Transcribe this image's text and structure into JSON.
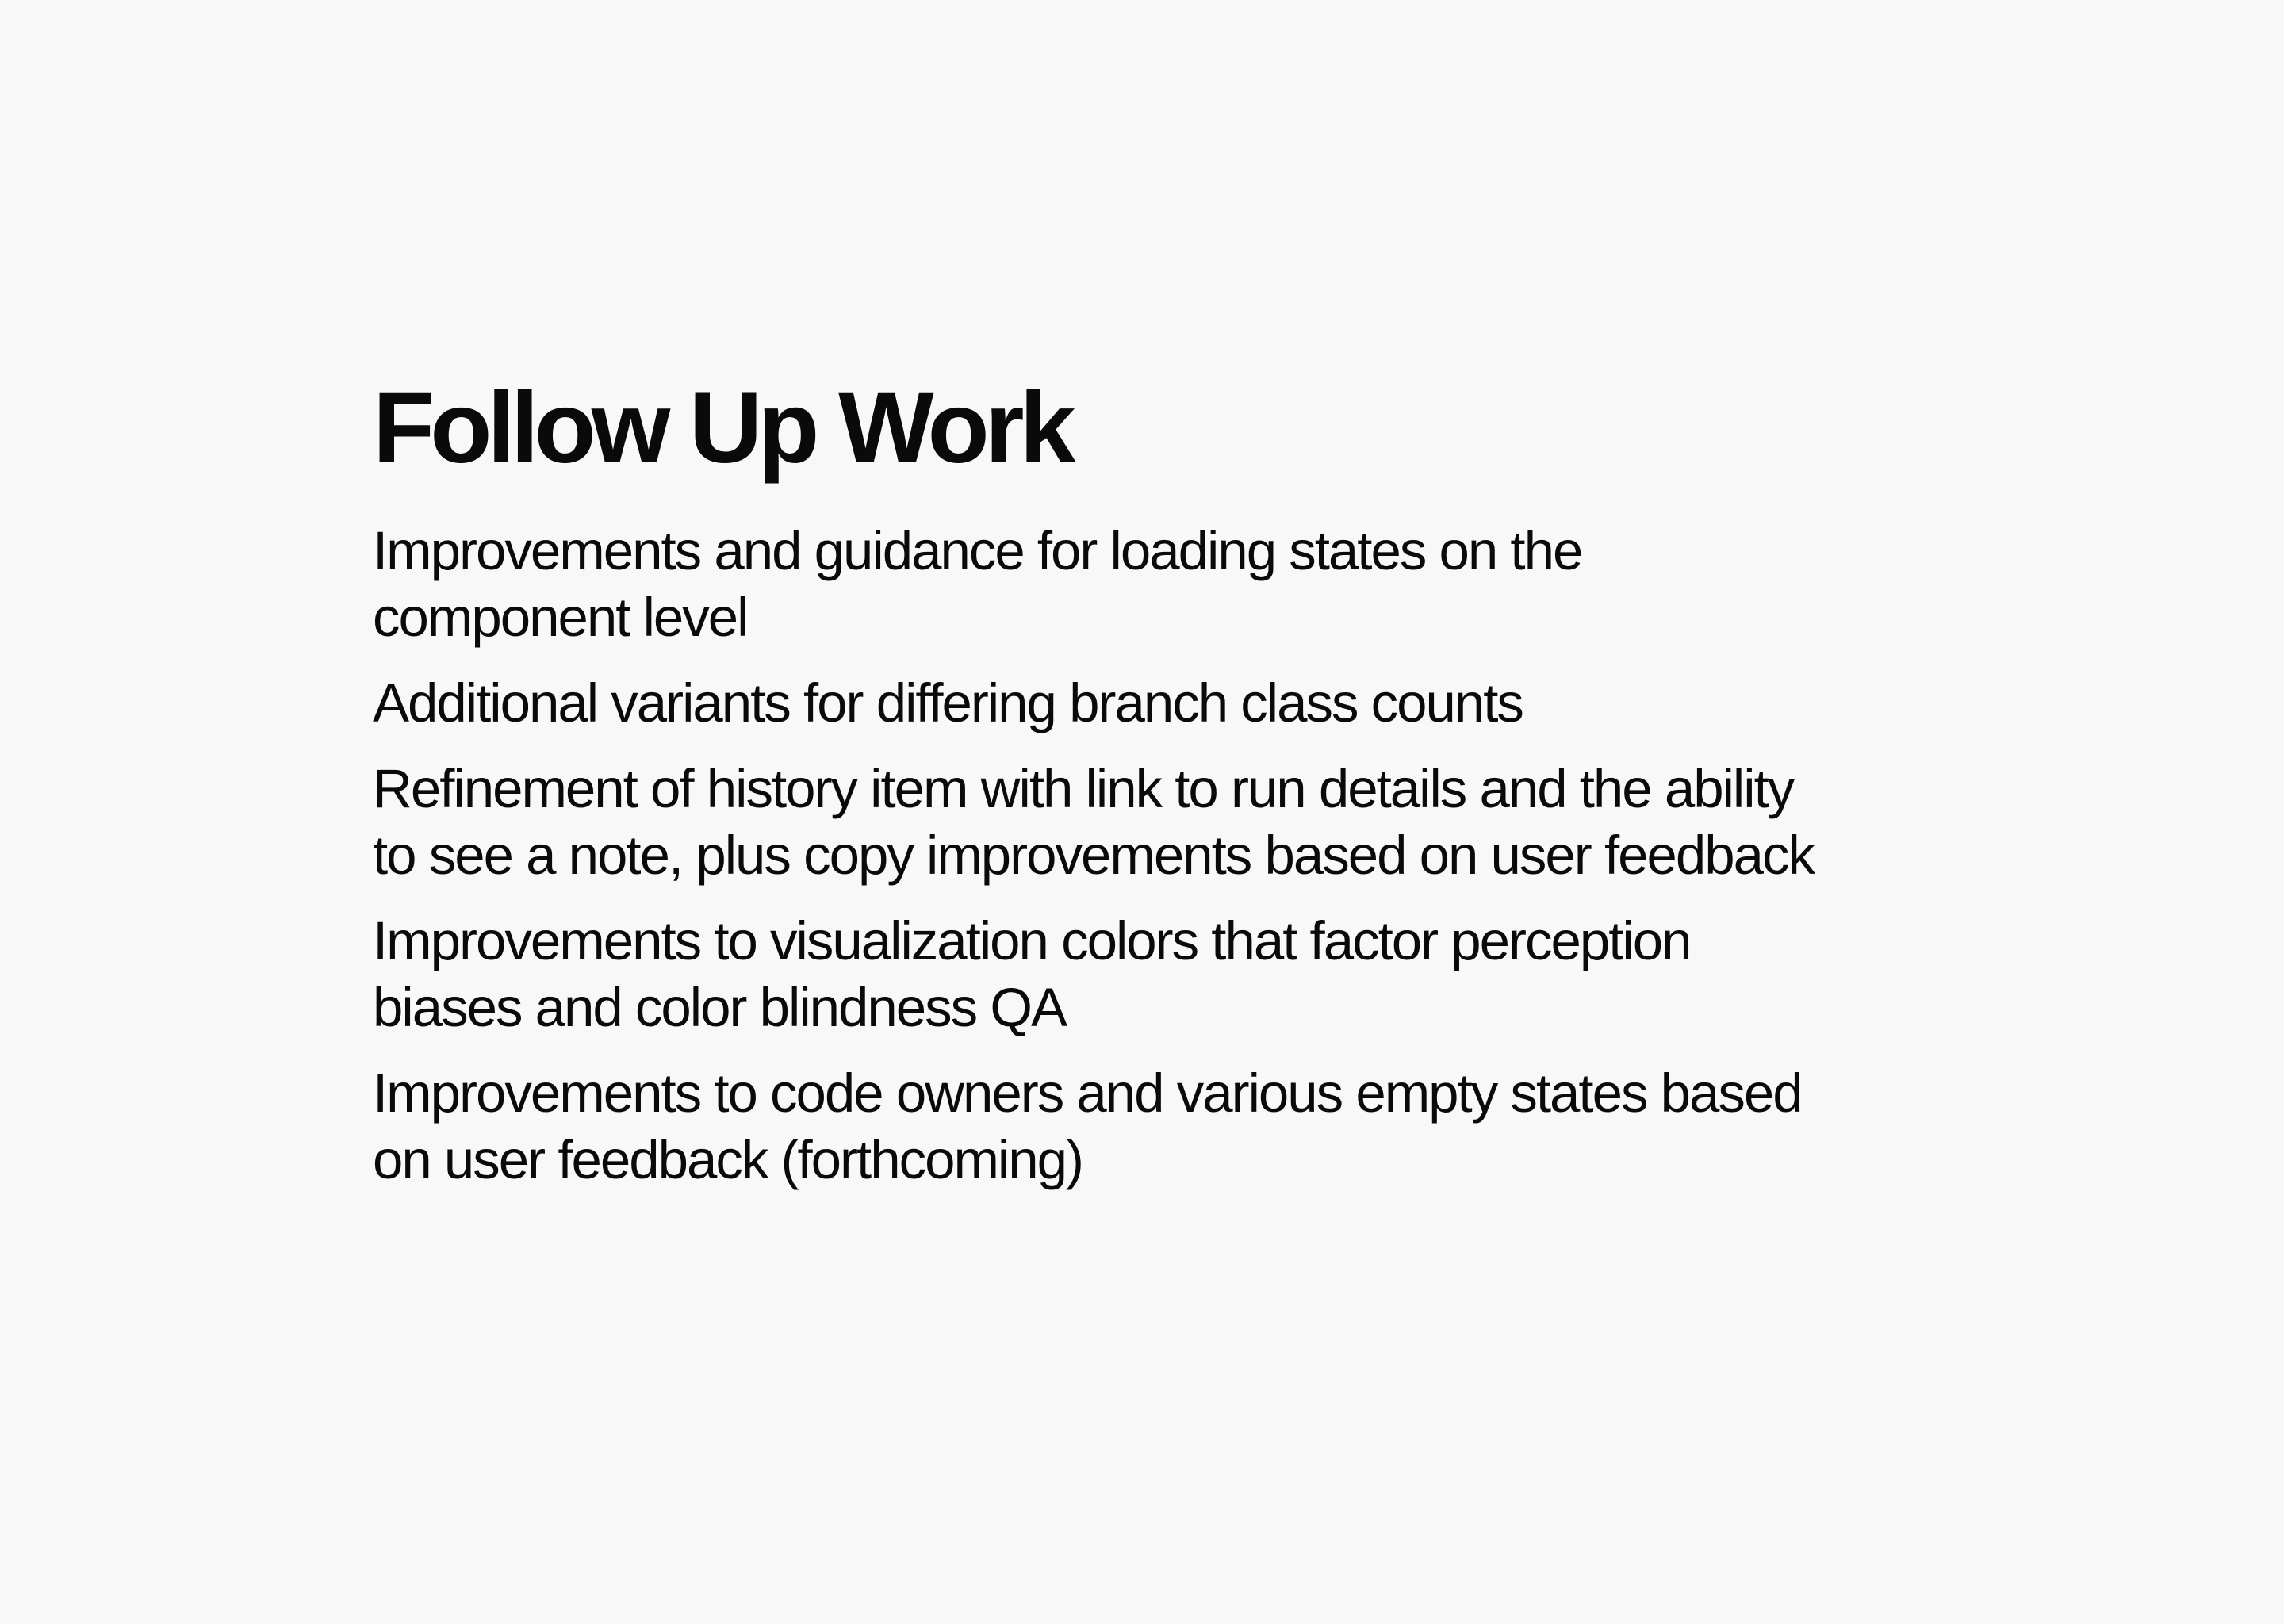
{
  "slide": {
    "title": "Follow Up Work",
    "items": [
      "Improvements and guidance for loading states on the component level",
      "Additional variants for differing branch class counts",
      "Refinement of history item with link to run details and the ability to see a note, plus copy improvements based on user feedback",
      "Improvements to visualization colors that factor perception biases and color blindness QA",
      "Improvements to code owners and various empty states based on user feedback (forthcoming)"
    ]
  },
  "colors": {
    "background": "#f8f8f8",
    "text": "#0a0a0a"
  }
}
